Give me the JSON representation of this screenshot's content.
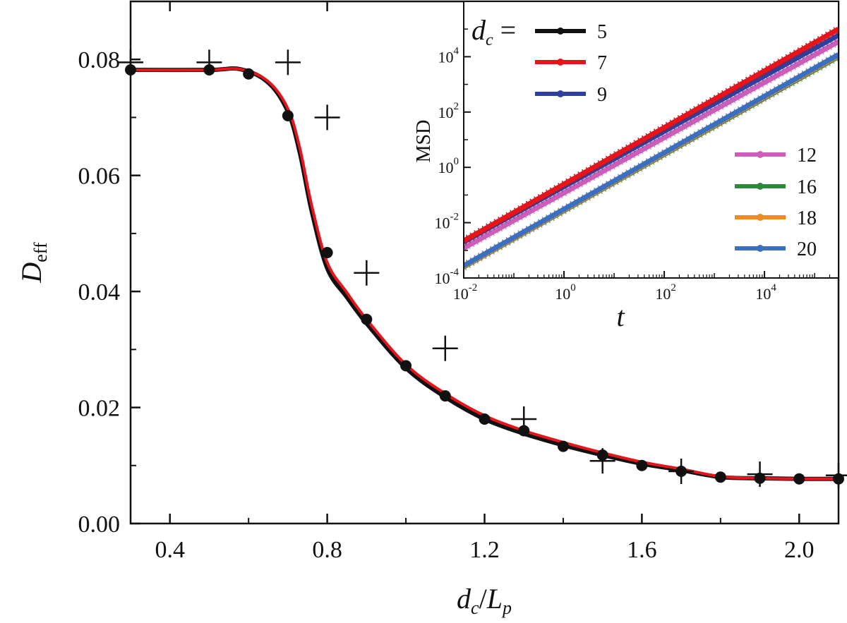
{
  "chart_data": [
    {
      "type": "line",
      "xlabel": "d_c/L_p",
      "ylabel": "D_eff",
      "xlim": [
        0.3,
        2.1
      ],
      "ylim": [
        0.0,
        0.09
      ],
      "xticks": [
        0.4,
        0.8,
        1.2,
        1.6,
        2.0
      ],
      "xtick_labels": [
        "0.4",
        "0.8",
        "1.2",
        "1.6",
        "2.0"
      ],
      "yticks": [
        0.0,
        0.02,
        0.04,
        0.06,
        0.08
      ],
      "ytick_labels": [
        "0.00",
        "0.02",
        "0.04",
        "0.06",
        "0.08"
      ],
      "grid": false,
      "series": [
        {
          "marker": "circle",
          "color": "#111111",
          "x": [
            0.3,
            0.5,
            0.6,
            0.7,
            0.8,
            0.9,
            1.0,
            1.1,
            1.2,
            1.3,
            1.4,
            1.5,
            1.6,
            1.7,
            1.8,
            1.9,
            2.0,
            2.1
          ],
          "y": [
            0.0782,
            0.0782,
            0.0775,
            0.0703,
            0.0467,
            0.0352,
            0.0272,
            0.022,
            0.018,
            0.016,
            0.0133,
            0.0118,
            0.01,
            0.009,
            0.008,
            0.0078,
            0.0077,
            0.0077
          ]
        },
        {
          "marker": "none",
          "color": "#111111",
          "x": [
            0.3,
            0.5,
            0.58,
            0.65,
            0.7,
            0.73,
            0.76,
            0.8,
            0.85,
            0.9,
            1.0,
            1.1,
            1.2,
            1.3,
            1.4,
            1.5,
            1.6,
            1.7,
            1.8,
            1.9,
            2.0,
            2.1
          ],
          "y": [
            0.0782,
            0.0782,
            0.0783,
            0.076,
            0.071,
            0.064,
            0.054,
            0.044,
            0.039,
            0.0345,
            0.0268,
            0.0218,
            0.018,
            0.0155,
            0.0135,
            0.0118,
            0.0103,
            0.0092,
            0.008,
            0.0078,
            0.0077,
            0.0077
          ]
        },
        {
          "marker": "none",
          "color": "#e8141c",
          "x": [
            0.3,
            0.5,
            0.58,
            0.65,
            0.7,
            0.73,
            0.76,
            0.8,
            0.85,
            0.9,
            1.0,
            1.1,
            1.2,
            1.3,
            1.4,
            1.5,
            1.6,
            1.7,
            1.8,
            1.9,
            2.0,
            2.1
          ],
          "y": [
            0.0782,
            0.0782,
            0.0783,
            0.0762,
            0.0715,
            0.0648,
            0.055,
            0.045,
            0.0398,
            0.0352,
            0.0274,
            0.0224,
            0.0186,
            0.016,
            0.014,
            0.0122,
            0.0106,
            0.0094,
            0.0081,
            0.0078,
            0.0077,
            0.0077
          ]
        },
        {
          "marker": "plus",
          "color": "#111111",
          "x": [
            0.3,
            0.5,
            0.7,
            0.8,
            0.9,
            1.1,
            1.3,
            1.5,
            1.7,
            1.9,
            2.1
          ],
          "y": [
            0.0795,
            0.0795,
            0.0795,
            0.07,
            0.0432,
            0.0302,
            0.018,
            0.0108,
            0.009,
            0.0085,
            0.0083
          ]
        }
      ]
    },
    {
      "type": "line",
      "xlabel": "t",
      "ylabel": "MSD",
      "xscale": "log",
      "yscale": "log",
      "xlim": [
        0.01,
        300000
      ],
      "ylim": [
        0.0001,
        1000000
      ],
      "xtick_labels": [
        {
          "base": "10",
          "exp": "-2"
        },
        {
          "base": "10",
          "exp": "0"
        },
        {
          "base": "10",
          "exp": "2"
        },
        {
          "base": "10",
          "exp": "4"
        }
      ],
      "ytick_labels": [
        {
          "base": "10",
          "exp": "-4"
        },
        {
          "base": "10",
          "exp": "-2"
        },
        {
          "base": "10",
          "exp": "0"
        },
        {
          "base": "10",
          "exp": "2"
        },
        {
          "base": "10",
          "exp": "4"
        }
      ],
      "legend_title": "d_c =",
      "legend_placement": "top-left and right",
      "series": [
        {
          "name": "5",
          "color": "#111111",
          "x": [
            0.01,
            300000
          ],
          "y": [
            0.0022,
            100000
          ]
        },
        {
          "name": "7",
          "color": "#e8141c",
          "x": [
            0.01,
            300000
          ],
          "y": [
            0.0022,
            100000
          ]
        },
        {
          "name": "9",
          "color": "#2e3f9e",
          "x": [
            0.01,
            300000
          ],
          "y": [
            0.002,
            60000
          ]
        },
        {
          "name": "12",
          "color": "#cc5db8",
          "x": [
            0.01,
            300000
          ],
          "y": [
            0.0012,
            35000
          ]
        },
        {
          "name": "16",
          "color": "#2a8a3a",
          "x": [
            0.01,
            300000
          ],
          "y": [
            0.00025,
            10000
          ]
        },
        {
          "name": "18",
          "color": "#f08a24",
          "x": [
            0.01,
            300000
          ],
          "y": [
            0.00026,
            11000
          ]
        },
        {
          "name": "20",
          "color": "#3b6fbf",
          "x": [
            0.01,
            300000
          ],
          "y": [
            0.00028,
            12000
          ]
        }
      ]
    }
  ]
}
